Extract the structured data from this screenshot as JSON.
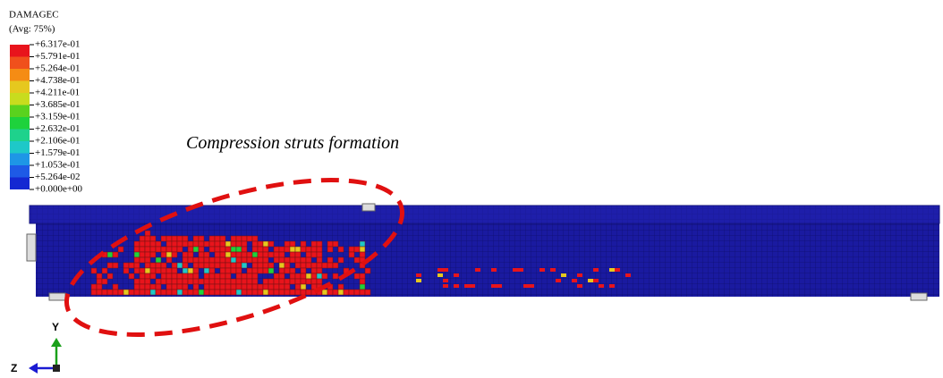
{
  "legend": {
    "title": "DAMAGEC",
    "subtitle": "(Avg: 75%)",
    "labels": [
      "+6.317e-01",
      "+5.791e-01",
      "+5.264e-01",
      "+4.738e-01",
      "+4.211e-01",
      "+3.685e-01",
      "+3.159e-01",
      "+2.632e-01",
      "+2.106e-01",
      "+1.579e-01",
      "+1.053e-01",
      "+5.264e-02",
      "+0.000e+00"
    ],
    "colors": [
      "#e8141c",
      "#f0501c",
      "#f58c14",
      "#e6c81e",
      "#c8dc1e",
      "#5ad21e",
      "#1ed23c",
      "#1ed28c",
      "#1ec8c8",
      "#1e96e6",
      "#1e5ae6",
      "#1428d2"
    ]
  },
  "annotation": "Compression struts formation",
  "triad": {
    "y": "Y",
    "z": "Z"
  }
}
